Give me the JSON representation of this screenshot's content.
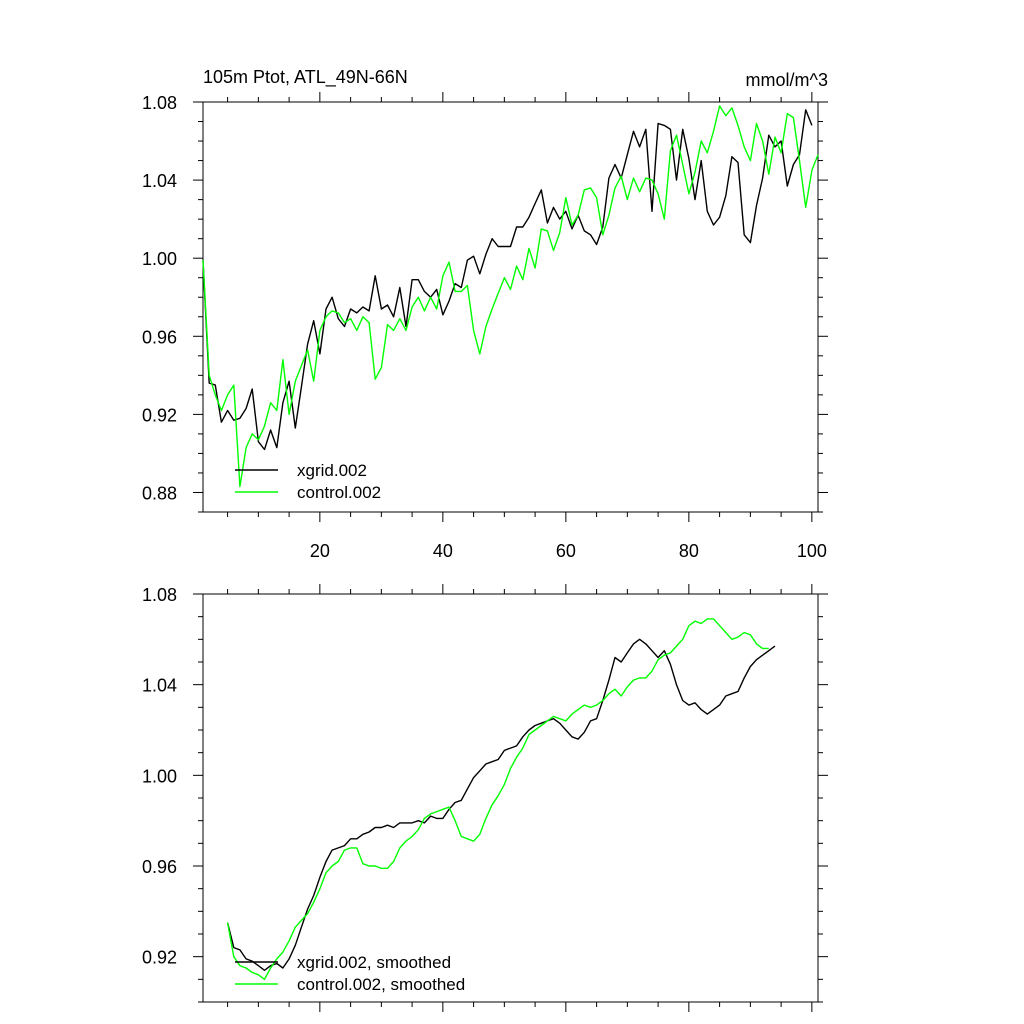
{
  "chart_data": [
    {
      "type": "line",
      "title": "105m Ptot, ATL_49N-66N",
      "units": "mmol/m^3",
      "xlim": [
        1,
        101
      ],
      "ylim": [
        0.87,
        1.08
      ],
      "yticks": [
        "0.88",
        "0.92",
        "0.96",
        "1.00",
        "1.04",
        "1.08"
      ],
      "xticks": [
        "20",
        "40",
        "60",
        "80",
        "100"
      ],
      "legend_position": "bottom-left",
      "series": [
        {
          "name": "xgrid.002",
          "color": "#000000",
          "x_start": 1,
          "values": [
            0.999,
            0.936,
            0.935,
            0.916,
            0.922,
            0.917,
            0.918,
            0.923,
            0.933,
            0.906,
            0.902,
            0.912,
            0.903,
            0.926,
            0.937,
            0.913,
            0.934,
            0.956,
            0.968,
            0.951,
            0.974,
            0.98,
            0.969,
            0.965,
            0.974,
            0.972,
            0.975,
            0.973,
            0.991,
            0.974,
            0.976,
            0.97,
            0.985,
            0.965,
            0.989,
            0.989,
            0.983,
            0.98,
            0.984,
            0.971,
            0.978,
            0.987,
            0.985,
            0.999,
            1.001,
            0.992,
            1.002,
            1.01,
            1.006,
            1.006,
            1.006,
            1.016,
            1.016,
            1.021,
            1.028,
            1.035,
            1.018,
            1.026,
            1.02,
            1.024,
            1.015,
            1.022,
            1.014,
            1.012,
            1.007,
            1.016,
            1.041,
            1.048,
            1.041,
            1.053,
            1.065,
            1.057,
            1.066,
            1.024,
            1.069,
            1.068,
            1.066,
            1.04,
            1.066,
            1.051,
            1.03,
            1.05,
            1.024,
            1.017,
            1.021,
            1.032,
            1.052,
            1.049,
            1.012,
            1.008,
            1.027,
            1.041,
            1.063,
            1.057,
            1.06,
            1.037,
            1.048,
            1.053,
            1.076,
            1.068
          ]
        },
        {
          "name": "control.002",
          "color": "#00ff00",
          "x_start": 1,
          "values": [
            0.999,
            0.94,
            0.93,
            0.922,
            0.93,
            0.935,
            0.883,
            0.903,
            0.91,
            0.907,
            0.914,
            0.926,
            0.922,
            0.948,
            0.92,
            0.937,
            0.945,
            0.953,
            0.937,
            0.963,
            0.97,
            0.973,
            0.972,
            0.967,
            0.969,
            0.963,
            0.97,
            0.967,
            0.938,
            0.944,
            0.966,
            0.963,
            0.969,
            0.963,
            0.975,
            0.98,
            0.973,
            0.98,
            0.974,
            0.991,
            0.998,
            0.983,
            0.983,
            0.986,
            0.963,
            0.951,
            0.965,
            0.974,
            0.982,
            0.99,
            0.984,
            0.996,
            0.989,
            1.005,
            0.995,
            1.015,
            1.014,
            1.004,
            1.013,
            1.031,
            1.017,
            1.022,
            1.035,
            1.036,
            1.031,
            1.012,
            1.022,
            1.036,
            1.042,
            1.03,
            1.041,
            1.034,
            1.041,
            1.04,
            1.033,
            1.02,
            1.055,
            1.063,
            1.048,
            1.033,
            1.044,
            1.06,
            1.054,
            1.065,
            1.078,
            1.073,
            1.077,
            1.068,
            1.057,
            1.05,
            1.069,
            1.06,
            1.043,
            1.062,
            1.054,
            1.074,
            1.072,
            1.05,
            1.026,
            1.045,
            1.053
          ]
        }
      ]
    },
    {
      "type": "line",
      "title": "",
      "xlim": [
        1,
        101
      ],
      "ylim": [
        0.9,
        1.08
      ],
      "yticks": [
        "0.92",
        "0.96",
        "1.00",
        "1.04",
        "1.08"
      ],
      "xticks": [],
      "legend_position": "bottom-left",
      "series": [
        {
          "name": "xgrid.002, smoothed",
          "color": "#000000",
          "x_start": 5,
          "values": [
            0.935,
            0.924,
            0.923,
            0.919,
            0.918,
            0.916,
            0.914,
            0.916,
            0.917,
            0.915,
            0.919,
            0.925,
            0.933,
            0.941,
            0.947,
            0.955,
            0.962,
            0.967,
            0.968,
            0.969,
            0.972,
            0.972,
            0.974,
            0.975,
            0.977,
            0.977,
            0.978,
            0.977,
            0.979,
            0.979,
            0.979,
            0.98,
            0.979,
            0.982,
            0.981,
            0.981,
            0.985,
            0.988,
            0.989,
            0.994,
            0.999,
            1.002,
            1.005,
            1.006,
            1.007,
            1.011,
            1.012,
            1.013,
            1.017,
            1.02,
            1.022,
            1.023,
            1.024,
            1.025,
            1.023,
            1.02,
            1.017,
            1.016,
            1.019,
            1.024,
            1.025,
            1.033,
            1.042,
            1.052,
            1.05,
            1.054,
            1.058,
            1.06,
            1.058,
            1.055,
            1.052,
            1.055,
            1.049,
            1.04,
            1.033,
            1.031,
            1.032,
            1.029,
            1.027,
            1.029,
            1.031,
            1.035,
            1.036,
            1.037,
            1.043,
            1.048,
            1.051,
            1.053,
            1.055,
            1.057
          ]
        },
        {
          "name": "control.002, smoothed",
          "color": "#00ff00",
          "x_start": 5,
          "values": [
            0.935,
            0.92,
            0.916,
            0.915,
            0.913,
            0.912,
            0.91,
            0.915,
            0.919,
            0.922,
            0.927,
            0.933,
            0.936,
            0.939,
            0.944,
            0.95,
            0.957,
            0.96,
            0.962,
            0.967,
            0.968,
            0.968,
            0.961,
            0.96,
            0.96,
            0.959,
            0.959,
            0.962,
            0.968,
            0.971,
            0.973,
            0.976,
            0.981,
            0.983,
            0.984,
            0.985,
            0.986,
            0.98,
            0.973,
            0.972,
            0.971,
            0.974,
            0.981,
            0.987,
            0.991,
            0.996,
            1.003,
            1.008,
            1.012,
            1.018,
            1.02,
            1.022,
            1.024,
            1.026,
            1.025,
            1.024,
            1.027,
            1.029,
            1.031,
            1.03,
            1.031,
            1.033,
            1.036,
            1.038,
            1.035,
            1.039,
            1.042,
            1.043,
            1.043,
            1.046,
            1.051,
            1.053,
            1.054,
            1.057,
            1.06,
            1.066,
            1.068,
            1.067,
            1.069,
            1.069,
            1.066,
            1.063,
            1.06,
            1.061,
            1.063,
            1.062,
            1.058,
            1.056,
            1.056
          ]
        }
      ]
    }
  ]
}
